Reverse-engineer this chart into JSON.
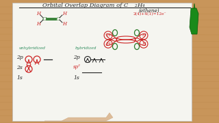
{
  "bg_wood_color": "#c8955a",
  "paper_color": "#f5f5f0",
  "title_color": "#222222",
  "red_color": "#cc2222",
  "green_color": "#2a7a2a",
  "teal_color": "#2a8a5a",
  "formula_eq": "2(4)+4(1)=12e⁻",
  "unhybridized_label": "unhybridized",
  "hybridized_label": "hybridized",
  "label_2p": "2p",
  "label_2s": "2s",
  "label_sp2": "sp²"
}
